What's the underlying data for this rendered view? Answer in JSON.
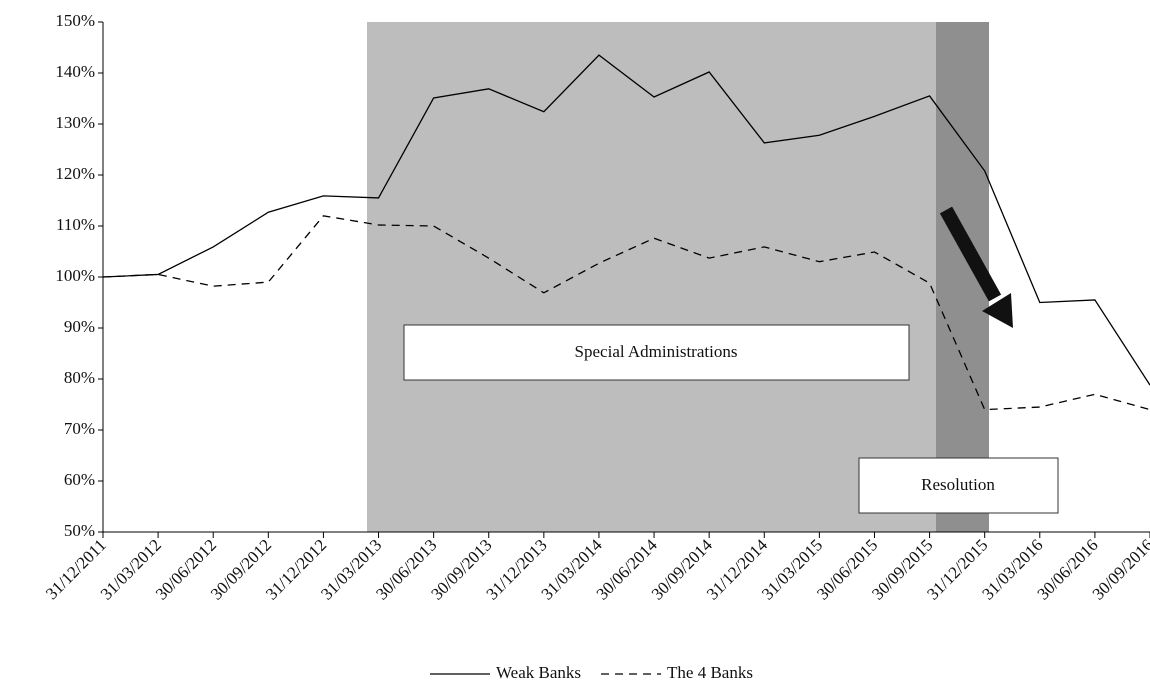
{
  "chart_data": {
    "type": "line",
    "categories": [
      "31/12/2011",
      "31/03/2012",
      "30/06/2012",
      "30/09/2012",
      "31/12/2012",
      "31/03/2013",
      "30/06/2013",
      "30/09/2013",
      "31/12/2013",
      "31/03/2014",
      "30/06/2014",
      "30/09/2014",
      "31/12/2014",
      "31/03/2015",
      "30/06/2015",
      "30/09/2015",
      "31/12/2015",
      "31/03/2016",
      "30/06/2016",
      "30/09/2016"
    ],
    "series": [
      {
        "name": "Weak Banks",
        "color": "#000000",
        "dash": "none",
        "values": [
          100,
          100.5,
          105.9,
          112.7,
          115.9,
          115.5,
          135.1,
          136.9,
          132.4,
          143.5,
          135.3,
          140.2,
          126.3,
          127.8,
          131.5,
          135.5,
          120.8,
          95,
          95.5,
          78.8
        ]
      },
      {
        "name": "The 4 Banks",
        "color": "#000000",
        "dash": "8 6",
        "values": [
          100,
          100.5,
          98.2,
          99,
          112,
          110.2,
          110,
          103.7,
          96.9,
          102.7,
          107.6,
          103.7,
          105.9,
          103,
          104.9,
          98.8,
          74,
          74.5,
          77,
          74
        ]
      }
    ],
    "ylim": [
      50,
      150
    ],
    "yticks": [
      {
        "value": 50,
        "label": "50%"
      },
      {
        "value": 60,
        "label": "60%"
      },
      {
        "value": 70,
        "label": "70%"
      },
      {
        "value": 80,
        "label": "80%"
      },
      {
        "value": 90,
        "label": "90%"
      },
      {
        "value": 100,
        "label": "100%"
      },
      {
        "value": 110,
        "label": "110%"
      },
      {
        "value": 120,
        "label": "120%"
      },
      {
        "value": 130,
        "label": "130%"
      },
      {
        "value": 140,
        "label": "140%"
      },
      {
        "value": 150,
        "label": "150%"
      }
    ],
    "annotations": [
      "Special Administrations",
      "Resolution"
    ],
    "grid": false
  }
}
